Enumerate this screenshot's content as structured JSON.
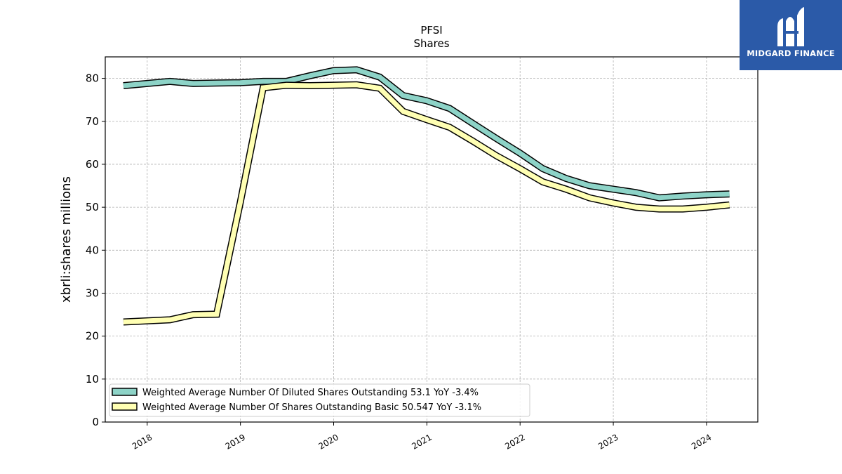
{
  "chart_data": {
    "type": "line",
    "title": "PFSI",
    "subtitle": "Shares",
    "xlabel": "",
    "ylabel": "xbrli:shares millions",
    "xlim": [
      2017.55,
      2024.55
    ],
    "ylim": [
      0,
      85
    ],
    "x_ticks": [
      "2018",
      "2019",
      "2020",
      "2021",
      "2022",
      "2023",
      "2024"
    ],
    "y_ticks": [
      "0",
      "10",
      "20",
      "30",
      "40",
      "50",
      "60",
      "70",
      "80"
    ],
    "grid": true,
    "legend_position": "lower-left",
    "series": [
      {
        "name": "Weighted Average Number Of Diluted Shares Outstanding  53.1 YoY -3.4%",
        "color": "#8dd3c7",
        "x": [
          "2017-09-30",
          "2018-03-31",
          "2018-06-30",
          "2018-09-30",
          "2018-12-31",
          "2019-03-31",
          "2019-06-30",
          "2019-09-30",
          "2019-12-31",
          "2020-03-31",
          "2020-06-30",
          "2020-09-30",
          "2020-12-31",
          "2021-03-31",
          "2021-06-30",
          "2021-09-30",
          "2021-12-31",
          "2022-03-31",
          "2022-06-30",
          "2022-09-30",
          "2022-12-31",
          "2023-03-31",
          "2023-06-30",
          "2023-09-30",
          "2023-12-31",
          "2024-03-31"
        ],
        "values": [
          78.3,
          79.3,
          78.8,
          78.9,
          79.0,
          79.3,
          79.3,
          80.6,
          81.8,
          82.0,
          80.3,
          76.0,
          74.8,
          73.0,
          69.5,
          66.0,
          62.6,
          59.0,
          56.7,
          55.0,
          54.2,
          53.4,
          52.2,
          52.6,
          52.9,
          53.1
        ]
      },
      {
        "name": "Weighted Average Number Of Shares Outstanding Basic  50.547 YoY -3.1%",
        "color": "#ffffb3",
        "x": [
          "2017-09-30",
          "2018-03-31",
          "2018-06-30",
          "2018-09-30",
          "2018-12-31",
          "2019-03-31",
          "2019-06-30",
          "2019-09-30",
          "2019-12-31",
          "2020-03-31",
          "2020-06-30",
          "2020-09-30",
          "2020-12-31",
          "2021-03-31",
          "2021-06-30",
          "2021-09-30",
          "2021-12-31",
          "2022-03-31",
          "2022-06-30",
          "2022-09-30",
          "2022-12-31",
          "2023-03-31",
          "2023-06-30",
          "2023-09-30",
          "2023-12-31",
          "2024-03-31"
        ],
        "values": [
          23.3,
          23.8,
          25.0,
          25.1,
          51.0,
          77.8,
          78.4,
          78.3,
          78.4,
          78.5,
          77.7,
          72.3,
          70.4,
          68.6,
          65.4,
          62.0,
          59.0,
          55.9,
          54.2,
          52.2,
          51.0,
          50.0,
          49.6,
          49.6,
          50.0,
          50.547
        ]
      }
    ]
  },
  "logo": {
    "text": "MIDGARD FINANCE"
  },
  "colors": {
    "logo_bg": "#2b5aa8",
    "grid": "#b0b0b0"
  }
}
